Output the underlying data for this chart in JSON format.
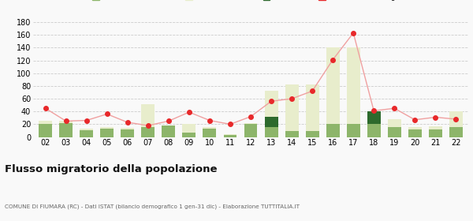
{
  "years": [
    "02",
    "03",
    "04",
    "05",
    "06",
    "07",
    "08",
    "09",
    "10",
    "11",
    "12",
    "13",
    "14",
    "15",
    "16",
    "17",
    "18",
    "19",
    "20",
    "21",
    "22"
  ],
  "iscritti_altri_comuni": [
    20,
    22,
    11,
    13,
    12,
    16,
    18,
    7,
    13,
    3,
    20,
    15,
    10,
    10,
    20,
    20,
    20,
    15,
    12,
    12,
    15
  ],
  "iscritti_estero": [
    5,
    3,
    2,
    2,
    2,
    35,
    0,
    14,
    2,
    2,
    2,
    58,
    72,
    72,
    120,
    120,
    12,
    13,
    4,
    5,
    25
  ],
  "iscritti_altri": [
    0,
    0,
    0,
    0,
    0,
    0,
    0,
    0,
    0,
    0,
    0,
    17,
    0,
    0,
    0,
    0,
    20,
    0,
    0,
    0,
    0
  ],
  "cancellati": [
    45,
    25,
    26,
    36,
    23,
    18,
    25,
    39,
    26,
    20,
    32,
    56,
    60,
    72,
    121,
    163,
    41,
    45,
    27,
    31,
    28
  ],
  "color_altri_comuni": "#8db56a",
  "color_estero": "#e8edcc",
  "color_altri": "#2d6a2d",
  "color_cancellati": "#e8282a",
  "color_line": "#f0a0a0",
  "title": "Flusso migratorio della popolazione",
  "subtitle": "COMUNE DI FIUMARA (RC) - Dati ISTAT (bilancio demografico 1 gen-31 dic) - Elaborazione TUTTITALIA.IT",
  "ylim": [
    0,
    180
  ],
  "yticks": [
    0,
    20,
    40,
    60,
    80,
    100,
    120,
    140,
    160,
    180
  ],
  "background_color": "#f9f9f9",
  "grid_color": "#cccccc"
}
